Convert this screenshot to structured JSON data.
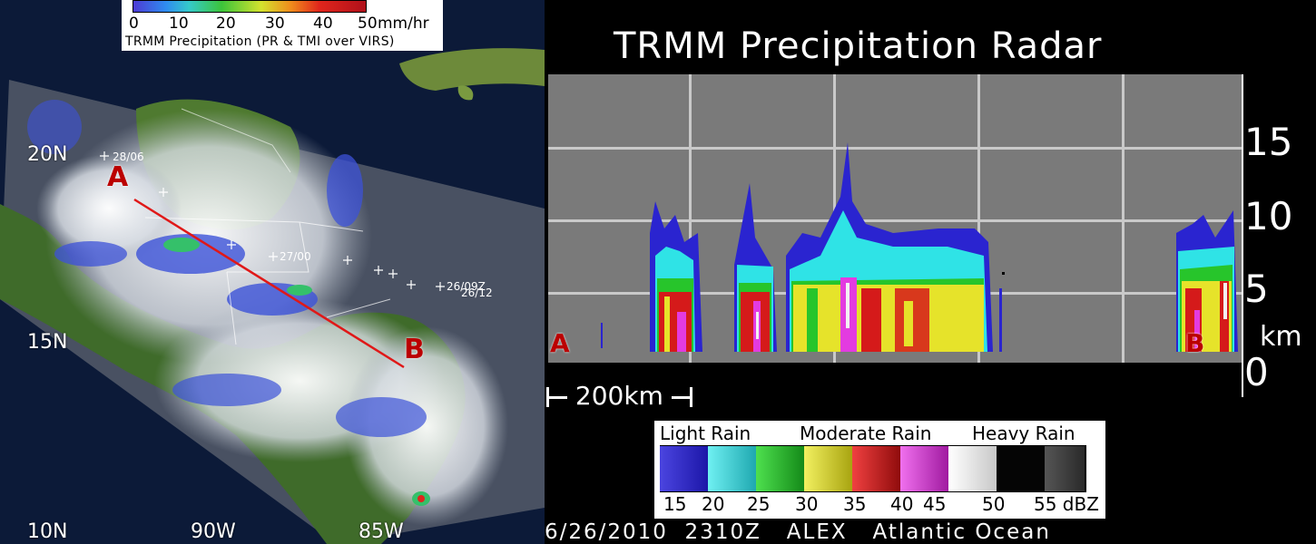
{
  "map": {
    "latitudes": [
      "20N",
      "15N",
      "10N"
    ],
    "longitudes": [
      "90W",
      "85W"
    ],
    "markers": [
      "A",
      "B"
    ],
    "track_labels": [
      "28/06",
      "27/00",
      "26/09Z",
      "26/12"
    ],
    "legend": {
      "ticks": [
        "0",
        "10",
        "20",
        "30",
        "40",
        "50"
      ],
      "unit": "mm/hr",
      "caption": "TRMM Precipitation  (PR & TMI  over VIRS)"
    }
  },
  "radar": {
    "title": "TRMM Precipitation Radar",
    "heights": [
      "15",
      "10",
      "5",
      "0"
    ],
    "height_unit": "km",
    "markers": [
      "A",
      "B"
    ],
    "scale_label": "200km",
    "legend": {
      "headers": [
        "Light Rain",
        "Moderate Rain",
        "Heavy Rain"
      ],
      "values": [
        "15",
        "20",
        "25",
        "30",
        "35",
        "40",
        "45",
        "50",
        "55 dBZ"
      ],
      "colors": [
        "#2a24d0",
        "#2fe3e6",
        "#27c52b",
        "#e6e32a",
        "#d51a1a",
        "#e33be0",
        "#f2f2f2",
        "#0a0a0a",
        "#3f3f3f"
      ]
    }
  },
  "footer": "6/26/2010  2310Z   ALEX   Atlantic Ocean"
}
